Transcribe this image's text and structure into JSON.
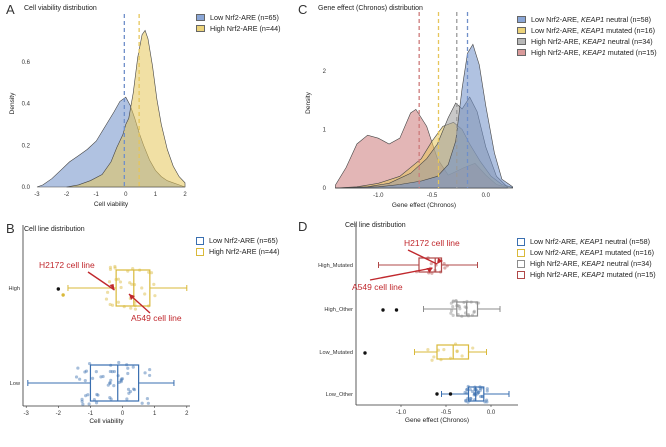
{
  "panels": [
    {
      "id": "A",
      "label": "A",
      "title": "Cell viability distribution",
      "chart_data": {
        "type": "area",
        "xlabel": "Cell viability",
        "ylabel": "Density",
        "xlim": [
          -3.1,
          2.1
        ],
        "ylim": [
          0,
          0.8
        ],
        "xticks": [
          -3,
          -2,
          -1,
          0,
          1,
          2
        ],
        "yticks": [
          0.0,
          0.2,
          0.4,
          0.6
        ],
        "vlines": [
          {
            "series": "Low Nrf2-ARE",
            "x": -0.05
          },
          {
            "series": "High Nrf2-ARE",
            "x": 0.45
          }
        ],
        "series": [
          {
            "name": "Low Nrf2-ARE (n=65)",
            "color": "#6f8fc9",
            "x": [
              -3,
              -2.8,
              -2.5,
              -2.2,
              -1.9,
              -1.6,
              -1.3,
              -1.0,
              -0.7,
              -0.4,
              -0.2,
              0.0,
              0.15,
              0.3,
              0.45,
              0.6,
              0.8,
              1.0,
              1.2,
              1.4,
              1.6,
              1.8,
              2.0
            ],
            "y": [
              0.0,
              0.01,
              0.04,
              0.08,
              0.12,
              0.15,
              0.18,
              0.22,
              0.29,
              0.36,
              0.41,
              0.43,
              0.39,
              0.33,
              0.26,
              0.2,
              0.13,
              0.08,
              0.05,
              0.03,
              0.02,
              0.01,
              0.0
            ]
          },
          {
            "name": "High Nrf2-ARE (n=44)",
            "color": "#e6c65a",
            "x": [
              -2.0,
              -1.6,
              -1.2,
              -0.8,
              -0.5,
              -0.3,
              -0.1,
              0.0,
              0.1,
              0.25,
              0.4,
              0.55,
              0.65,
              0.75,
              0.9,
              1.05,
              1.2,
              1.4,
              1.6,
              1.8,
              2.0
            ],
            "y": [
              0.0,
              0.01,
              0.03,
              0.06,
              0.12,
              0.19,
              0.25,
              0.3,
              0.33,
              0.45,
              0.62,
              0.73,
              0.75,
              0.71,
              0.58,
              0.42,
              0.3,
              0.18,
              0.1,
              0.05,
              0.02
            ]
          }
        ]
      }
    },
    {
      "id": "B",
      "label": "B",
      "title": "Cell line distribution",
      "annotations": [
        "H2172 cell line",
        "A549 cell line"
      ],
      "chart_data": {
        "type": "boxplot",
        "xlabel": "Cell viability",
        "xlim": [
          -3.1,
          2.1
        ],
        "xticks": [
          -3,
          -2,
          -1,
          0,
          1,
          2
        ],
        "categories": [
          "Low",
          "High"
        ],
        "series": [
          {
            "name": "Low Nrf2-ARE (n=65)",
            "category": "Low",
            "color": "#3a6fb0",
            "whisker_low": -2.95,
            "q1": -1.0,
            "median": -0.15,
            "q3": 0.5,
            "whisker_high": 1.6
          },
          {
            "name": "High Nrf2-ARE (n=44)",
            "category": "High",
            "color": "#d9b93a",
            "whisker_low": -1.7,
            "q1": -0.2,
            "median": 0.35,
            "q3": 0.85,
            "whisker_high": 2.0
          }
        ]
      }
    },
    {
      "id": "C",
      "label": "C",
      "title": "Gene effect (Chronos) distribution",
      "chart_data": {
        "type": "area",
        "xlabel": "Gene effect (Chronos)",
        "ylabel": "Density",
        "xlim": [
          -1.45,
          0.3
        ],
        "ylim": [
          0,
          2.9
        ],
        "xticks": [
          -1.0,
          -0.5,
          0.0
        ],
        "yticks": [
          0,
          1,
          2
        ],
        "vlines": [
          {
            "series": "High Nrf2-ARE, KEAP1 mutated",
            "x": -0.62
          },
          {
            "series": "Low Nrf2-ARE, KEAP1 mutated",
            "x": -0.44
          },
          {
            "series": "High Nrf2-ARE, KEAP1 neutral",
            "x": -0.27
          },
          {
            "series": "Low Nrf2-ARE, KEAP1 neutral",
            "x": -0.17
          }
        ],
        "series": [
          {
            "name": "High Nrf2-ARE, KEAP1 mutated (n=15)",
            "color": "#cc7a7a",
            "x": [
              -1.4,
              -1.3,
              -1.2,
              -1.1,
              -1.0,
              -0.9,
              -0.8,
              -0.7,
              -0.65,
              -0.55,
              -0.45,
              -0.35,
              -0.28,
              -0.2,
              -0.1,
              0.0,
              0.1,
              0.2
            ],
            "y": [
              0.05,
              0.35,
              0.75,
              0.9,
              0.85,
              0.75,
              0.85,
              1.28,
              1.34,
              1.05,
              0.5,
              0.22,
              0.28,
              0.35,
              0.42,
              0.22,
              0.06,
              0.01
            ]
          },
          {
            "name": "Low Nrf2-ARE, KEAP1 mutated (n=16)",
            "color": "#e6c65a",
            "x": [
              -1.4,
              -1.2,
              -1.0,
              -0.8,
              -0.6,
              -0.5,
              -0.4,
              -0.3,
              -0.22,
              -0.15,
              -0.05,
              0.05,
              0.15,
              0.25
            ],
            "y": [
              0.0,
              0.02,
              0.08,
              0.2,
              0.5,
              0.8,
              1.05,
              1.12,
              1.0,
              0.75,
              0.45,
              0.2,
              0.06,
              0.01
            ]
          },
          {
            "name": "High Nrf2-ARE, KEAP1 neutral (n=34)",
            "color": "#9a9a9a",
            "x": [
              -1.4,
              -1.1,
              -0.9,
              -0.7,
              -0.55,
              -0.45,
              -0.35,
              -0.28,
              -0.22,
              -0.15,
              -0.08,
              0.0,
              0.1,
              0.2
            ],
            "y": [
              0.0,
              0.02,
              0.08,
              0.25,
              0.5,
              0.75,
              1.2,
              1.45,
              1.35,
              1.55,
              1.3,
              0.7,
              0.2,
              0.02
            ]
          },
          {
            "name": "Low Nrf2-ARE, KEAP1 neutral (n=58)",
            "color": "#6f8fc9",
            "x": [
              -1.4,
              -1.0,
              -0.8,
              -0.6,
              -0.45,
              -0.35,
              -0.28,
              -0.22,
              -0.17,
              -0.12,
              -0.06,
              0.0,
              0.08,
              0.15,
              0.25
            ],
            "y": [
              0.0,
              0.02,
              0.06,
              0.12,
              0.2,
              0.4,
              0.8,
              1.7,
              2.3,
              2.45,
              2.1,
              1.4,
              0.6,
              0.15,
              0.02
            ]
          }
        ]
      }
    },
    {
      "id": "D",
      "label": "D",
      "title": "Cell line distribution",
      "annotations": [
        "H2172 cell line",
        "A549 cell line"
      ],
      "chart_data": {
        "type": "boxplot",
        "xlabel": "Gene effect (Chronos)",
        "xlim": [
          -1.5,
          0.3
        ],
        "xticks": [
          -1.0,
          -0.5,
          0.0
        ],
        "categories": [
          "Low_Other",
          "Low_Mutated",
          "High_Other",
          "High_Mutated"
        ],
        "series": [
          {
            "name": "Low Nrf2-ARE, KEAP1 neutral (n=58)",
            "category": "Low_Other",
            "color": "#3a6fb0",
            "whisker_low": -0.55,
            "q1": -0.25,
            "median": -0.17,
            "q3": -0.08,
            "whisker_high": 0.2
          },
          {
            "name": "Low Nrf2-ARE, KEAP1 mutated (n=16)",
            "category": "Low_Mutated",
            "color": "#d9b93a",
            "whisker_low": -0.85,
            "q1": -0.6,
            "median": -0.42,
            "q3": -0.25,
            "whisker_high": -0.05
          },
          {
            "name": "High Nrf2-ARE, KEAP1 neutral (n=34)",
            "category": "High_Other",
            "color": "#8c8c8c",
            "whisker_low": -0.75,
            "q1": -0.38,
            "median": -0.27,
            "q3": -0.15,
            "whisker_high": 0.1
          },
          {
            "name": "High Nrf2-ARE, KEAP1 mutated (n=15)",
            "category": "High_Mutated",
            "color": "#b04848",
            "whisker_low": -1.25,
            "q1": -0.8,
            "median": -0.62,
            "q3": -0.55,
            "whisker_high": -0.15
          }
        ]
      }
    }
  ],
  "legends": {
    "A": [
      {
        "label": "Low Nrf2-ARE (n=65)",
        "color": "#8aa6d6"
      },
      {
        "label": "High Nrf2-ARE (n=44)",
        "color": "#ecd37a"
      }
    ],
    "B": [
      {
        "label": "Low Nrf2-ARE (n=65)",
        "color": "#3a6fb0"
      },
      {
        "label": "High Nrf2-ARE (n=44)",
        "color": "#d9b93a"
      }
    ],
    "C": [
      {
        "pre": "Low Nrf2-ARE, ",
        "keap": "KEAP1",
        "post": " neutral (n=58)",
        "color": "#8aa6d6"
      },
      {
        "pre": "Low Nrf2-ARE, ",
        "keap": "KEAP1",
        "post": " mutated (n=16)",
        "color": "#ecd37a"
      },
      {
        "pre": "High Nrf2-ARE, ",
        "keap": "KEAP1",
        "post": " neutral (n=34)",
        "color": "#b8b8b8"
      },
      {
        "pre": "High Nrf2-ARE, ",
        "keap": "KEAP1",
        "post": " mutated (n=15)",
        "color": "#d99a9a"
      }
    ],
    "D": [
      {
        "pre": "Low Nrf2-ARE, ",
        "keap": "KEAP1",
        "post": " neutral (n=58)",
        "color": "#3a6fb0"
      },
      {
        "pre": "Low Nrf2-ARE, ",
        "keap": "KEAP1",
        "post": " mutated (n=16)",
        "color": "#d9b93a"
      },
      {
        "pre": "High Nrf2-ARE, ",
        "keap": "KEAP1",
        "post": " neutral (n=34)",
        "color": "#8c8c8c"
      },
      {
        "pre": "High Nrf2-ARE, ",
        "keap": "KEAP1",
        "post": " mutated (n=15)",
        "color": "#b04848"
      }
    ]
  },
  "annotation_color": "#c0282d"
}
